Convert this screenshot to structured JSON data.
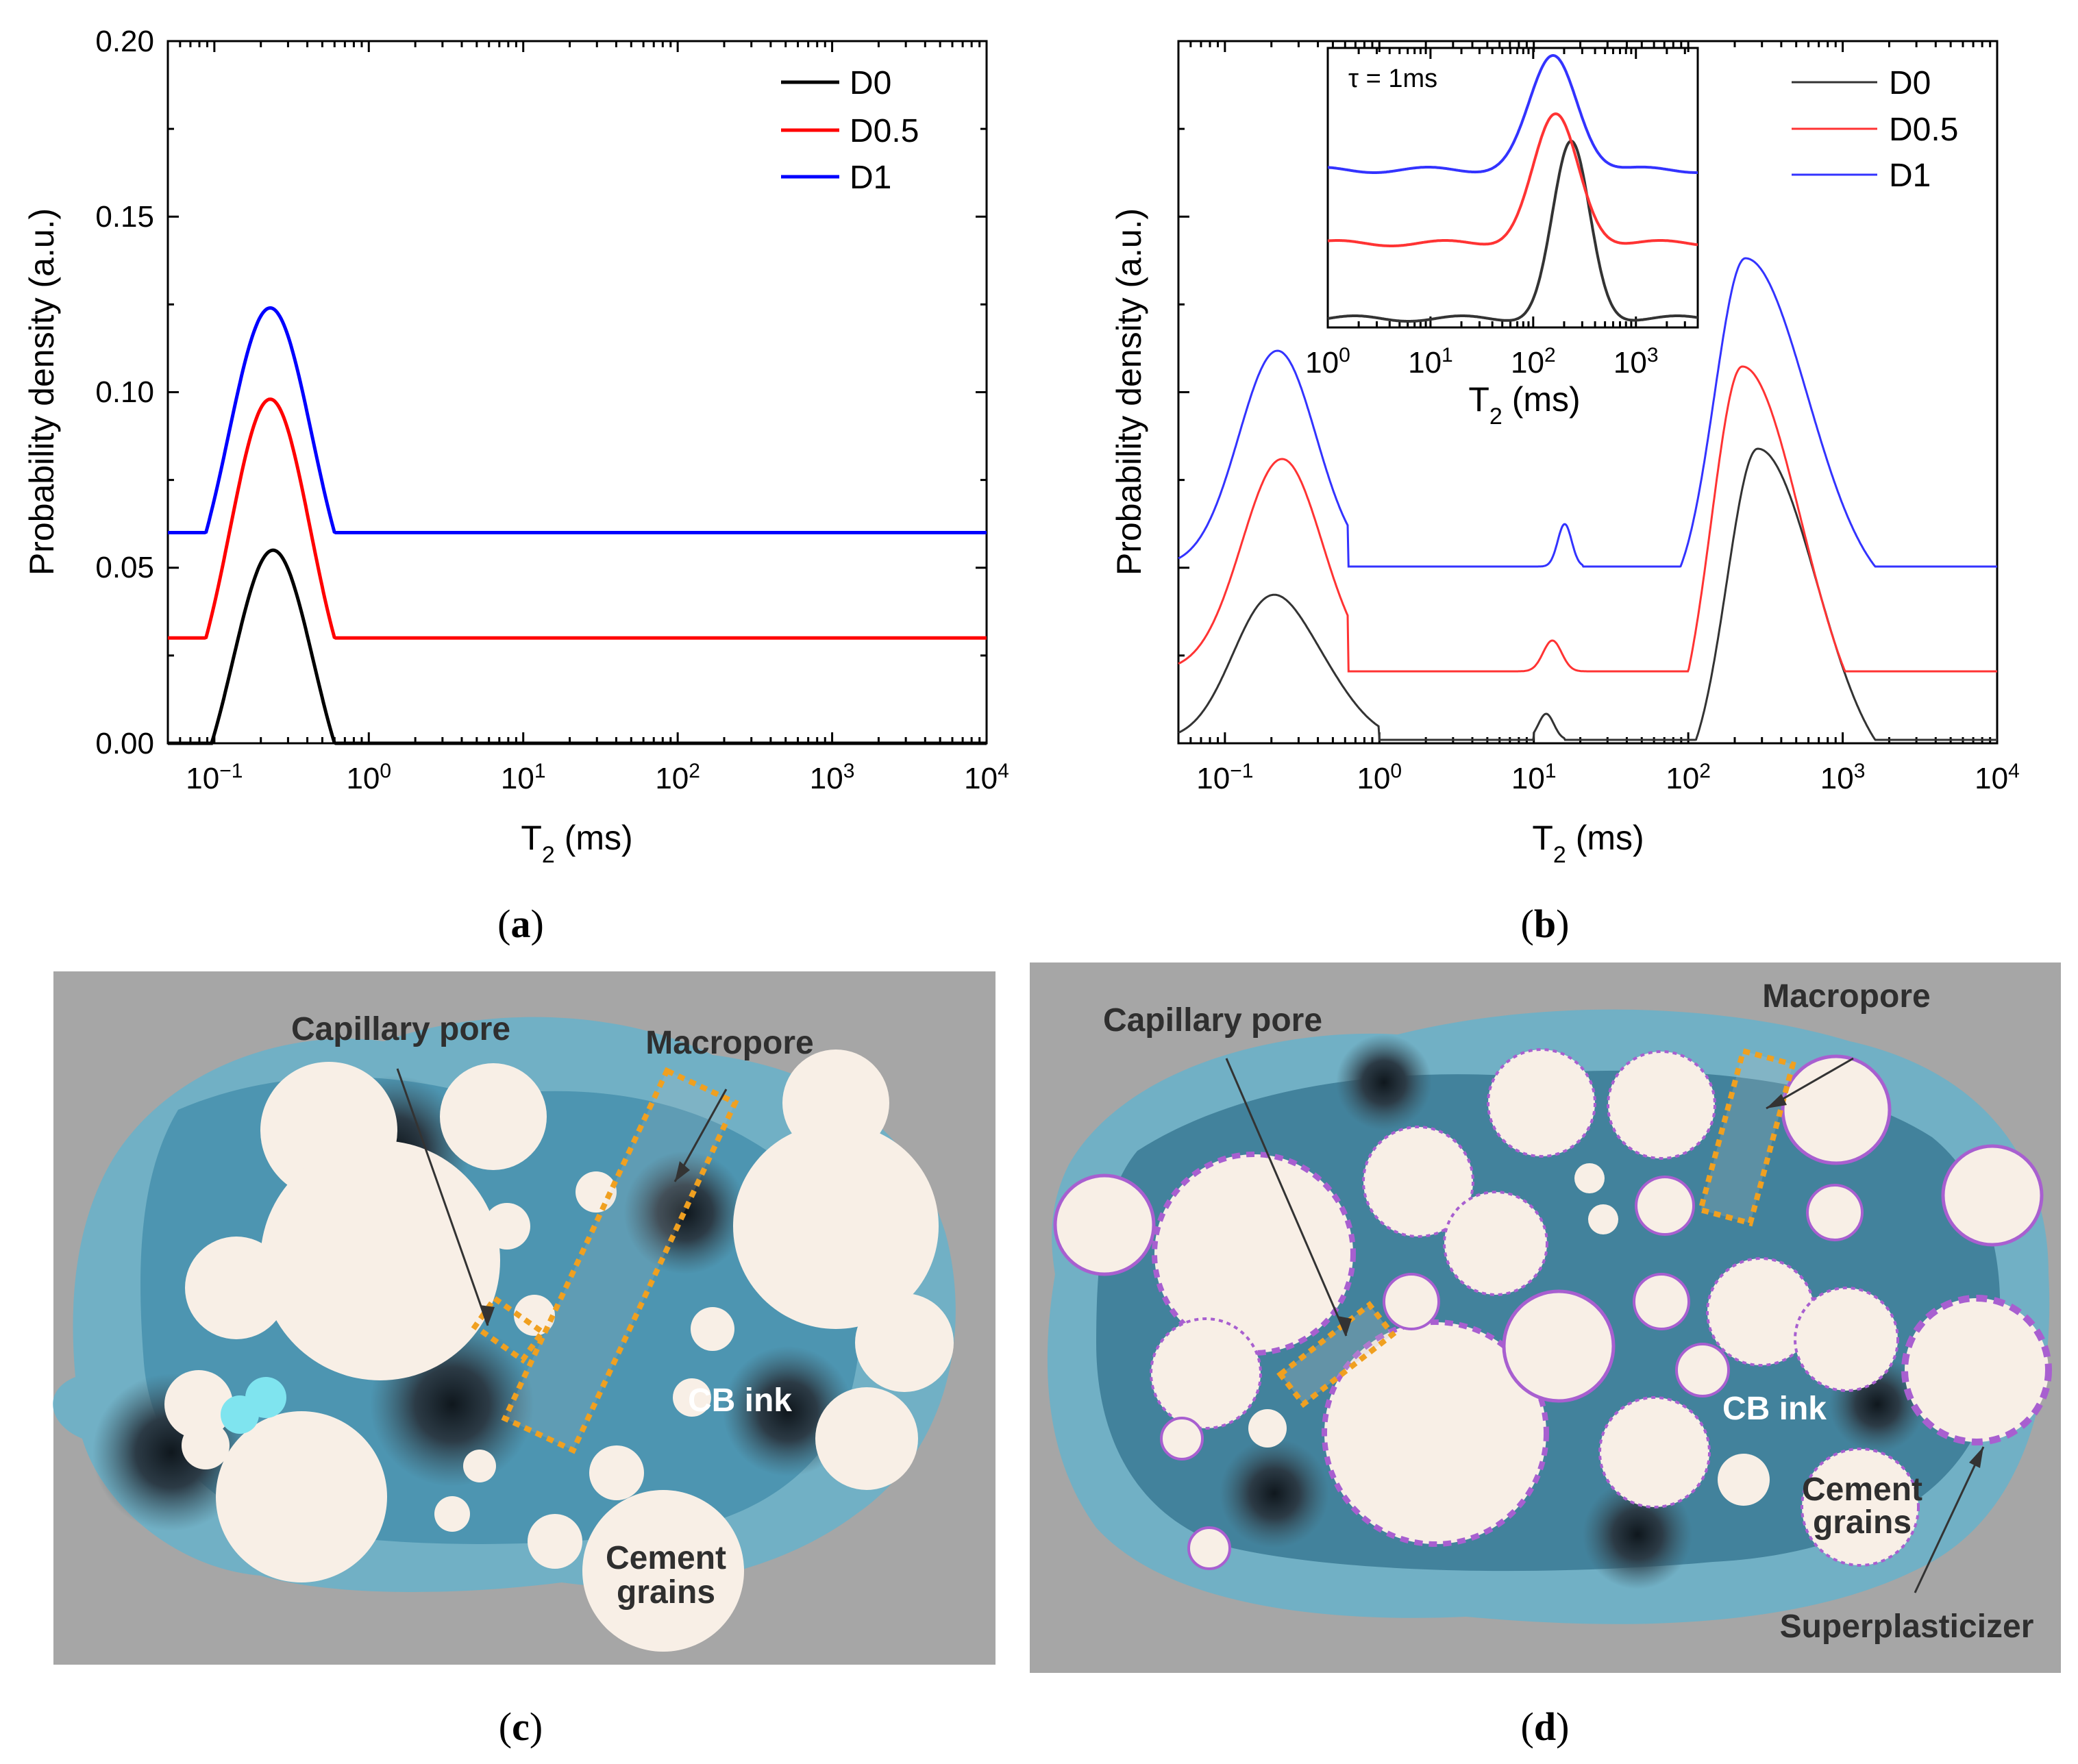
{
  "chart_data": [
    {
      "panel": "a",
      "type": "line",
      "xscale": "log",
      "xlim": [
        0.05,
        10000
      ],
      "ylim": [
        0,
        0.2
      ],
      "xlabel": "T",
      "xlabel_sub": "2",
      "xlabel_unit": "(ms)",
      "ylabel": "Probability density (a.u.)",
      "yticks": [
        "0.00",
        "0.05",
        "0.10",
        "0.15",
        "0.20"
      ],
      "xticks": [
        {
          "base": "10",
          "exp": "−1"
        },
        {
          "base": "10",
          "exp": "0"
        },
        {
          "base": "10",
          "exp": "1"
        },
        {
          "base": "10",
          "exp": "2"
        },
        {
          "base": "10",
          "exp": "3"
        },
        {
          "base": "10",
          "exp": "4"
        }
      ],
      "legend_position": "top-right",
      "series": [
        {
          "name": "D0",
          "color": "#000000",
          "baseline": 0.0,
          "peaks": [
            {
              "center_ms": 0.24,
              "height": 0.055,
              "width_dec": 0.26
            }
          ],
          "cutoff_ms": 0.6
        },
        {
          "name": "D0.5",
          "color": "#ff0000",
          "baseline": 0.03,
          "peaks": [
            {
              "center_ms": 0.23,
              "height": 0.068,
              "width_dec": 0.26
            }
          ],
          "cutoff_ms": 0.6
        },
        {
          "name": "D1",
          "color": "#0000ff",
          "baseline": 0.06,
          "peaks": [
            {
              "center_ms": 0.23,
              "height": 0.064,
              "width_dec": 0.27
            }
          ],
          "cutoff_ms": 0.6
        }
      ]
    },
    {
      "panel": "b",
      "type": "line",
      "xscale": "log",
      "xlim": [
        0.05,
        10000
      ],
      "xlabel": "T",
      "xlabel_sub": "2",
      "xlabel_unit": "(ms)",
      "ylabel": "Probability density (a.u.)",
      "xticks": [
        {
          "base": "10",
          "exp": "−1"
        },
        {
          "base": "10",
          "exp": "0"
        },
        {
          "base": "10",
          "exp": "1"
        },
        {
          "base": "10",
          "exp": "2"
        },
        {
          "base": "10",
          "exp": "3"
        },
        {
          "base": "10",
          "exp": "4"
        }
      ],
      "legend_position": "top-right",
      "series": [
        {
          "name": "D0",
          "color": "#333333"
        },
        {
          "name": "D0.5",
          "color": "#ff3333"
        },
        {
          "name": "D1",
          "color": "#3333ff"
        }
      ],
      "inset": {
        "annotation": "τ = 1ms",
        "xscale": "log",
        "xlim": [
          1,
          4000
        ],
        "xlabel": "T",
        "xlabel_sub": "2",
        "xlabel_unit": "(ms)",
        "xticks": [
          {
            "base": "10",
            "exp": "0"
          },
          {
            "base": "10",
            "exp": "1"
          },
          {
            "base": "10",
            "exp": "2"
          },
          {
            "base": "10",
            "exp": "3"
          }
        ]
      }
    }
  ],
  "captions": {
    "a": "a",
    "b": "b",
    "c": "c",
    "d": "d"
  },
  "diagram_c": {
    "labels": {
      "capillary_pore": "Capillary pore",
      "macropore": "Macropore",
      "cb_ink": "CB ink",
      "cement_grains_1": "Cement",
      "cement_grains_2": "grains"
    }
  },
  "diagram_d": {
    "labels": {
      "capillary_pore": "Capillary pore",
      "macropore": "Macropore",
      "cb_ink": "CB ink",
      "cement_grains_1": "Cement",
      "cement_grains_2": "grains",
      "superplasticizer": "Superplasticizer"
    }
  },
  "colors": {
    "background_gray": "#a6a6a6",
    "grain": "#f8efe6",
    "ink_blue": "#5fb3cf",
    "pore_dark": "#1b2730",
    "dash_orange": "#f0a020",
    "dash_purple": "#a85fd0"
  }
}
